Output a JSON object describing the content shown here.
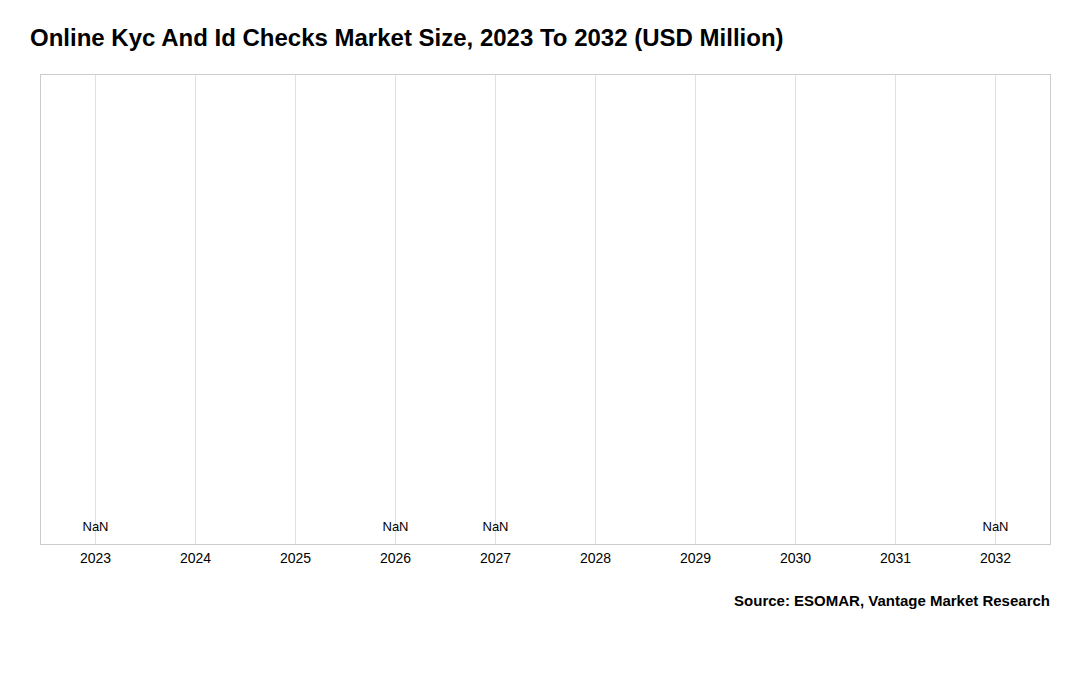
{
  "chart_data": {
    "type": "bar",
    "title": "Online Kyc And Id Checks Market Size, 2023 To 2032 (USD Million)",
    "x": [
      2023,
      2024,
      2025,
      2026,
      2027,
      2028,
      2029,
      2030,
      2031,
      2032
    ],
    "values": [
      null,
      null,
      null,
      null,
      null,
      null,
      null,
      null,
      null,
      null
    ],
    "value_labels": [
      "NaN",
      null,
      null,
      "NaN",
      "NaN",
      null,
      null,
      null,
      null,
      "NaN"
    ],
    "data_labels": true,
    "xlim": [
      2022.45,
      2032.55
    ],
    "xticks": [
      2023,
      2024,
      2025,
      2026,
      2027,
      2028,
      2029,
      2030,
      2031,
      2032
    ],
    "ylim": [
      0,
      1
    ],
    "tick_labels": "x",
    "grid": true,
    "annotations": [
      {
        "text": "Source: ESOMAR, Vantage Market Research"
      }
    ]
  }
}
